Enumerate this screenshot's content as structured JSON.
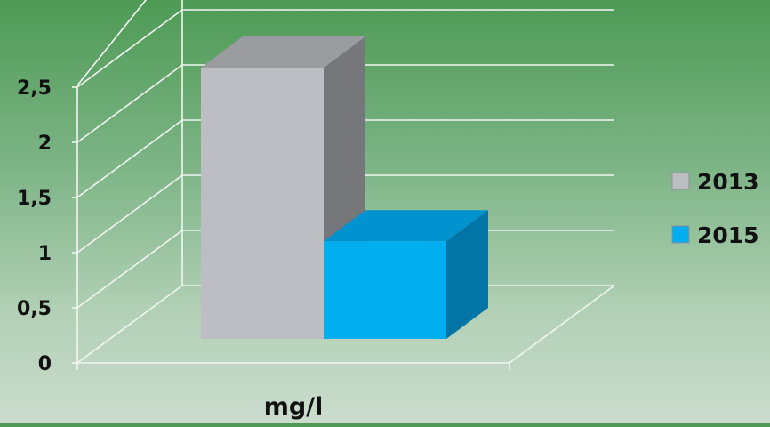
{
  "chart_data": {
    "type": "bar",
    "style": "3d-clustered",
    "title": "",
    "xlabel": "mg/l",
    "ylabel": "",
    "ylim": [
      0,
      2.5
    ],
    "ticks": [
      "0",
      "0,5",
      "1",
      "1,5",
      "2",
      "2,5"
    ],
    "categories": [
      "mg/l"
    ],
    "series": [
      {
        "name": "2013",
        "values": [
          2.5
        ],
        "color": "#bcbec4",
        "side_color": "#75777b",
        "top_color": "#9a9ca0"
      },
      {
        "name": "2015",
        "values": [
          0.9
        ],
        "color": "#00aeef",
        "side_color": "#0075a6",
        "top_color": "#0093cf"
      }
    ],
    "legend_position": "right",
    "grid": true
  }
}
